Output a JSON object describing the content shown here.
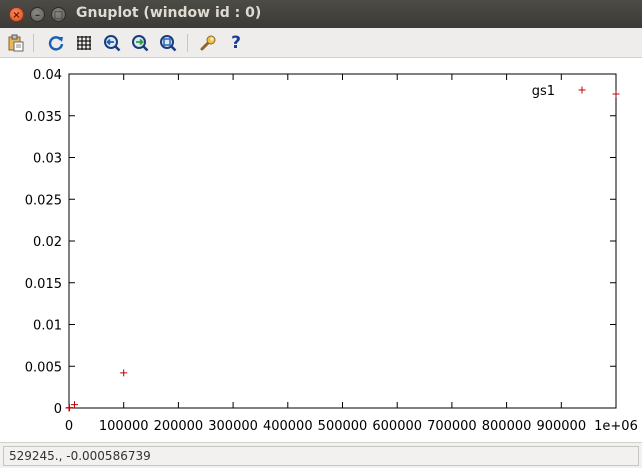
{
  "window": {
    "title": "Gnuplot (window id : 0)"
  },
  "toolbar": {
    "items": [
      {
        "name": "copy-to-clipboard",
        "glyph": "📋"
      },
      {
        "name": "replot",
        "glyph": "⟳"
      },
      {
        "name": "grid",
        "glyph": "#"
      },
      {
        "name": "zoom-previous",
        "glyph": "◐"
      },
      {
        "name": "zoom-next",
        "glyph": "◑"
      },
      {
        "name": "autoscale",
        "glyph": "⊙"
      },
      {
        "name": "config",
        "glyph": "🔧"
      },
      {
        "name": "help",
        "glyph": "?"
      }
    ]
  },
  "status": {
    "coordinates": "529245., -0.000586739"
  },
  "chart_data": {
    "type": "scatter",
    "title": "",
    "xlabel": "",
    "ylabel": "",
    "xlim": [
      0,
      1000000
    ],
    "ylim": [
      0,
      0.04
    ],
    "xticks": [
      0,
      100000,
      200000,
      300000,
      400000,
      500000,
      600000,
      700000,
      800000,
      900000,
      1000000
    ],
    "xtick_labels": [
      "0",
      "100000",
      "200000",
      "300000",
      "400000",
      "500000",
      "600000",
      "700000",
      "800000",
      "900000",
      "1e+06"
    ],
    "yticks": [
      0,
      0.005,
      0.01,
      0.015,
      0.02,
      0.025,
      0.03,
      0.035,
      0.04
    ],
    "ytick_labels": [
      "0",
      "0.005",
      "0.01",
      "0.015",
      "0.02",
      "0.025",
      "0.03",
      "0.035",
      "0.04"
    ],
    "grid": false,
    "legend_position": "top-right",
    "series": [
      {
        "name": "gs1",
        "color": "#c00000",
        "marker": "+",
        "points": [
          [
            0,
            0
          ],
          [
            1000,
            5e-05
          ],
          [
            10000,
            0.0004
          ],
          [
            100000,
            0.0042
          ],
          [
            1000000,
            0.0376
          ]
        ]
      }
    ]
  }
}
